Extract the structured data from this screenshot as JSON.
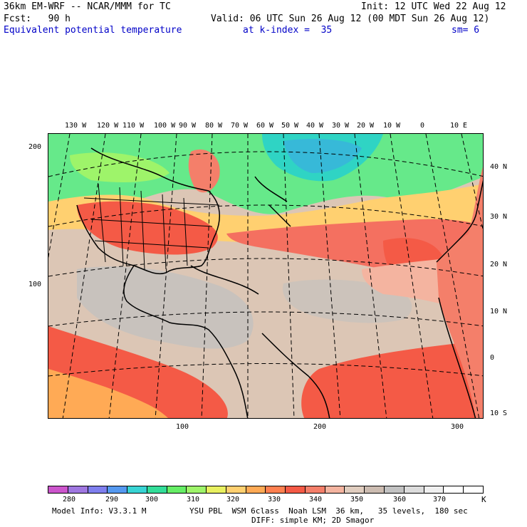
{
  "header": {
    "line1_left": "36km EM-WRF -- NCAR/MMM for TC",
    "line1_right": "Init: 12 UTC Wed 22 Aug 12",
    "line2_left": "Fcst:   90 h",
    "line2_right": "Valid: 06 UTC Sun 26 Aug 12 (00 MDT Sun 26 Aug 12)",
    "line3_field": "Equivalent potential temperature",
    "line3_level": "at k-index =  35",
    "line3_smooth": "sm= 6"
  },
  "map": {
    "longitude_labels": [
      "130 W",
      "120 W",
      "110 W",
      "100 W",
      "90 W",
      "80 W",
      "70 W",
      "60 W",
      "50 W",
      "40 W",
      "30 W",
      "20 W",
      "10 W",
      "0",
      "10 E"
    ],
    "latitude_labels": [
      "40 N",
      "30 N",
      "20 N",
      "10 N",
      "0",
      "10 S"
    ],
    "grid_x_labels": [
      "100",
      "200",
      "300"
    ],
    "grid_y_labels": [
      "200",
      "100"
    ]
  },
  "colorbar": {
    "labels": [
      "280",
      "290",
      "300",
      "310",
      "320",
      "330",
      "340",
      "350",
      "360",
      "370"
    ],
    "unit": "K",
    "colors": [
      "#cc55cc",
      "#9f77e0",
      "#7f7fee",
      "#5599f0",
      "#38d4d4",
      "#33dd99",
      "#66ee66",
      "#9ef46a",
      "#e8f060",
      "#ffd070",
      "#ffaa55",
      "#ff8050",
      "#f45a46",
      "#f47f6a",
      "#f4b4a0",
      "#e0cdbf",
      "#ccbcb1",
      "#c2c2c2",
      "#dcdcdc",
      "#f0f0f0",
      "#ffffff",
      "#ffffff"
    ]
  },
  "footer": {
    "model_info": "Model Info: V3.3.1 M",
    "physics_line1": "YSU PBL  WSM 6class  Noah LSM  36 km,   35 levels,  180 sec",
    "physics_line2": "DIFF: simple KM; 2D Smagor"
  }
}
